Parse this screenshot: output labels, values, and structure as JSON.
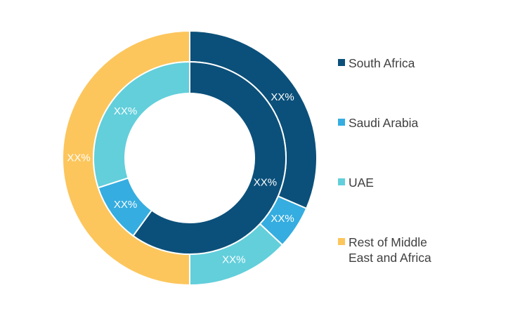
{
  "chart_data": {
    "type": "pie",
    "subtype": "double-donut",
    "title": "",
    "legend_position": "right",
    "series": [
      {
        "ring": "outer",
        "slices": [
          {
            "category": "South Africa",
            "value": 31.5,
            "label": "XX%"
          },
          {
            "category": "Saudi Arabia",
            "value": 5.5,
            "label": "XX%"
          },
          {
            "category": "UAE",
            "value": 13.0,
            "label": "XX%"
          },
          {
            "category": "Rest of Middle East and Africa",
            "value": 50.0,
            "label": "XX%"
          }
        ]
      },
      {
        "ring": "inner",
        "slices": [
          {
            "category": "South Africa",
            "value": 60.0,
            "label": "XX%"
          },
          {
            "category": "Saudi Arabia",
            "value": 10.0,
            "label": "XX%"
          },
          {
            "category": "UAE",
            "value": 30.0,
            "label": "XX%"
          }
        ]
      }
    ],
    "legend": [
      {
        "label": "South Africa",
        "color": "#0b507a"
      },
      {
        "label": "Saudi Arabia",
        "color": "#35ade0"
      },
      {
        "label": "UAE",
        "color": "#62cfdb"
      },
      {
        "label": "Rest of Middle\nEast and Africa",
        "color": "#fcc65c"
      }
    ]
  }
}
